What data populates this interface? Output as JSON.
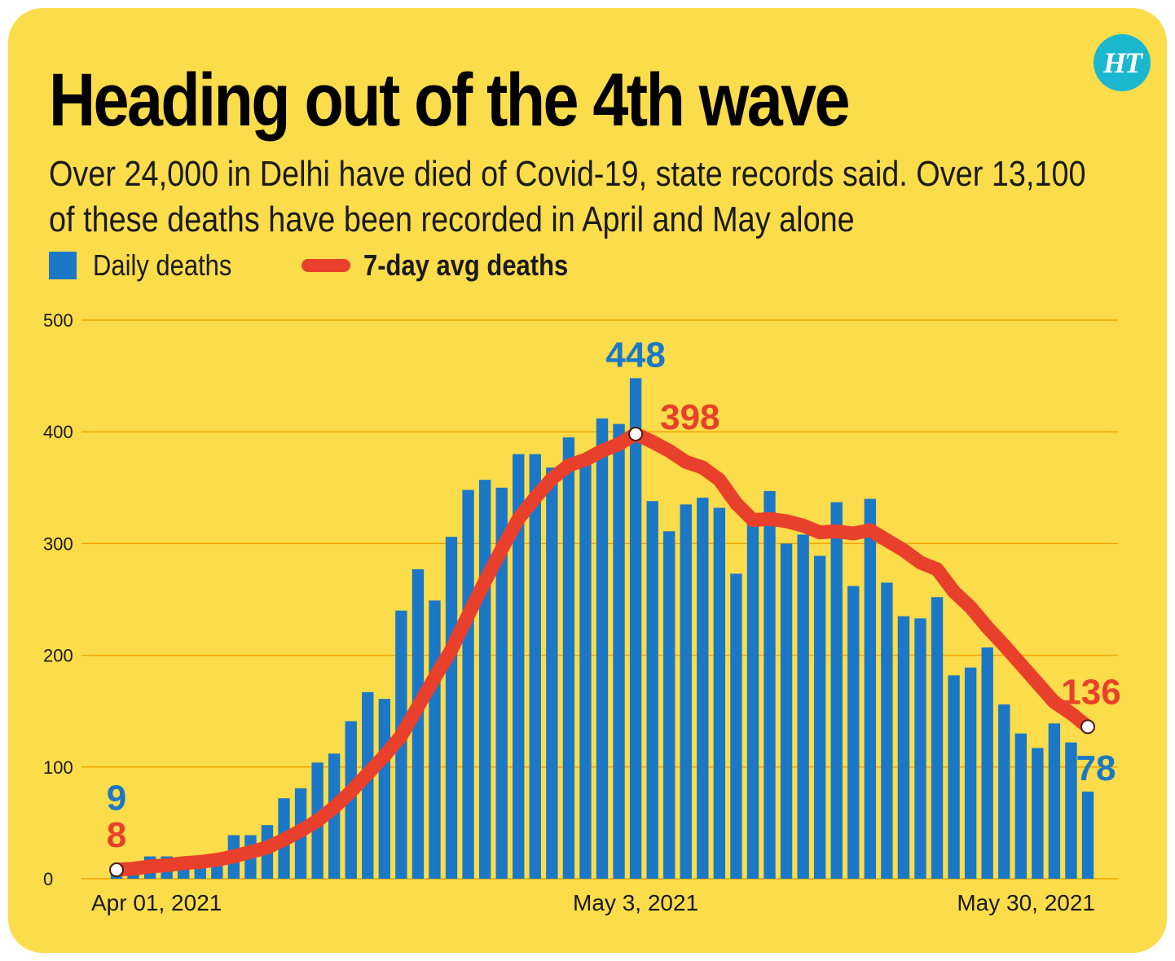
{
  "header": {
    "title": "Heading out of the 4th wave",
    "subtitle": "Over 24,000 in Delhi have died of Covid-19, state records said. Over 13,100 of these deaths have been recorded in April and May alone",
    "logo_text": "HT"
  },
  "colors": {
    "background": "#fbdc4a",
    "bars": "#1b78c6",
    "line": "#e9402b",
    "grid": "#f0a500",
    "logo": "#1bb7cf"
  },
  "chart_data": {
    "type": "bar",
    "x_tick_labels": [
      "Apr 01, 2021",
      "May 3, 2021",
      "May 30, 2021"
    ],
    "y_ticks": [
      0,
      100,
      200,
      300,
      400,
      500
    ],
    "ylim": [
      0,
      500
    ],
    "grid": true,
    "legend_position": "top-left",
    "series": [
      {
        "name": "Daily deaths",
        "kind": "bar",
        "values": [
          9,
          12,
          20,
          20,
          13,
          14,
          17,
          39,
          39,
          48,
          72,
          81,
          104,
          112,
          141,
          167,
          161,
          240,
          277,
          249,
          306,
          348,
          357,
          350,
          380,
          380,
          368,
          395,
          375,
          412,
          407,
          448,
          338,
          311,
          335,
          341,
          332,
          273,
          319,
          347,
          300,
          308,
          289,
          337,
          262,
          340,
          265,
          235,
          233,
          252,
          182,
          189,
          207,
          156,
          130,
          117,
          139,
          122,
          78
        ]
      },
      {
        "name": "7-day avg deaths",
        "kind": "line",
        "values": [
          8,
          9,
          11,
          12,
          14,
          15,
          17,
          20,
          24,
          28,
          35,
          43,
          52,
          64,
          78,
          94,
          110,
          128,
          154,
          180,
          205,
          236,
          266,
          295,
          322,
          341,
          358,
          370,
          375,
          383,
          389,
          398,
          391,
          383,
          373,
          368,
          357,
          336,
          321,
          322,
          320,
          316,
          310,
          311,
          309,
          312,
          303,
          294,
          283,
          277,
          257,
          243,
          225,
          209,
          192,
          175,
          158,
          148,
          136
        ]
      }
    ],
    "annotations": [
      {
        "label": "9",
        "series": "Daily deaths",
        "index": 0
      },
      {
        "label": "8",
        "series": "7-day avg deaths",
        "index": 0
      },
      {
        "label": "448",
        "series": "Daily deaths",
        "index": 31
      },
      {
        "label": "398",
        "series": "7-day avg deaths",
        "index": 31
      },
      {
        "label": "136",
        "series": "7-day avg deaths",
        "index": 58
      },
      {
        "label": "78",
        "series": "Daily deaths",
        "index": 58
      }
    ]
  }
}
